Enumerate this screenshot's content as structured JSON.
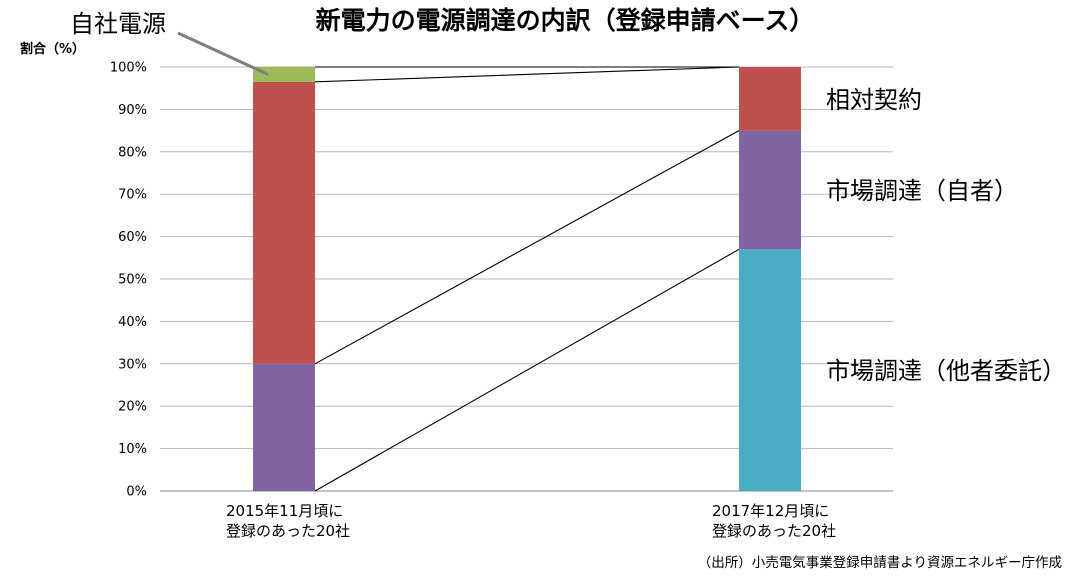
{
  "chart_data": {
    "type": "bar",
    "stacked": true,
    "title": "新電力の電源調達の内訳（登録申請ベース）",
    "ylabel": "割合（%）",
    "xlabel": "",
    "ylim": [
      0,
      100
    ],
    "yticks": [
      "0%",
      "10%",
      "20%",
      "30%",
      "40%",
      "50%",
      "60%",
      "70%",
      "80%",
      "90%",
      "100%"
    ],
    "grid": true,
    "categories": [
      [
        "2015年11月頃に",
        "登録のあった20社"
      ],
      [
        "2017年12月頃に",
        "登録のあった20社"
      ]
    ],
    "series": [
      {
        "name": "市場調達（他者委託）",
        "color": "#4BACC6",
        "values": [
          0,
          57
        ]
      },
      {
        "name": "市場調達（自者）",
        "color": "#8064A2",
        "values": [
          30,
          28
        ]
      },
      {
        "name": "相対契約",
        "color": "#C0504D",
        "values": [
          66.5,
          15
        ]
      },
      {
        "name": "自社電源",
        "color": "#9BBB59",
        "values": [
          3.5,
          0
        ]
      }
    ],
    "connector_lines": true,
    "source": "（出所）小売電気事業登録申請書より資源エネルギー庁作成"
  }
}
